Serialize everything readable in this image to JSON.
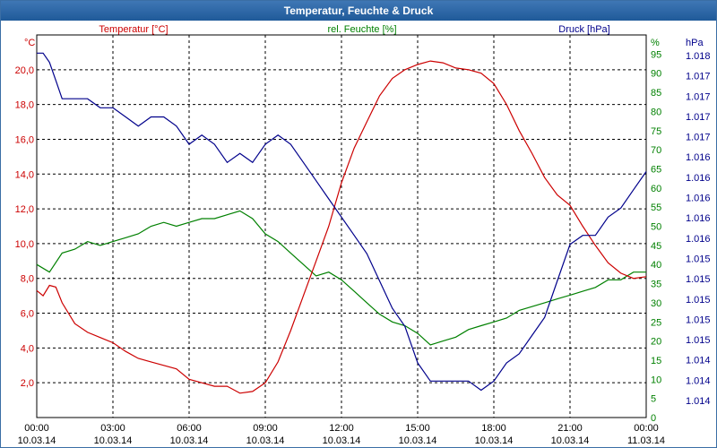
{
  "window": {
    "title": "Temperatur, Feuchte & Druck"
  },
  "chart_data": {
    "type": "line",
    "title": "Temperatur, Feuchte & Druck",
    "x_tick_labels": [
      {
        "time": "00:00",
        "date": "10.03.14"
      },
      {
        "time": "03:00",
        "date": "10.03.14"
      },
      {
        "time": "06:00",
        "date": "10.03.14"
      },
      {
        "time": "09:00",
        "date": "10.03.14"
      },
      {
        "time": "12:00",
        "date": "10.03.14"
      },
      {
        "time": "15:00",
        "date": "10.03.14"
      },
      {
        "time": "18:00",
        "date": "10.03.14"
      },
      {
        "time": "21:00",
        "date": "10.03.14"
      },
      {
        "time": "00:00",
        "date": "11.03.14"
      }
    ],
    "xlim": [
      0,
      24
    ],
    "series": [
      {
        "name": "Temperatur [°C]",
        "unit": "°C",
        "axis": "left",
        "color": "#cc0000",
        "ylim": [
          0,
          22
        ],
        "ticks": [
          2,
          4,
          6,
          8,
          10,
          12,
          14,
          16,
          18,
          20
        ],
        "tick_labels": [
          "2,0",
          "4,0",
          "6,0",
          "8,0",
          "10,0",
          "12,0",
          "14,0",
          "16,0",
          "18,0",
          "20,0"
        ],
        "x": [
          0,
          0.25,
          0.5,
          0.75,
          1,
          1.5,
          2,
          2.5,
          3,
          3.5,
          4,
          4.5,
          5,
          5.5,
          6,
          6.5,
          7,
          7.5,
          8,
          8.5,
          9,
          9.5,
          10,
          10.5,
          11,
          11.5,
          12,
          12.5,
          13,
          13.5,
          14,
          14.5,
          15,
          15.5,
          16,
          16.5,
          17,
          17.5,
          18,
          18.5,
          19,
          19.5,
          20,
          20.5,
          21,
          21.5,
          22,
          22.5,
          23,
          23.5,
          24
        ],
        "values": [
          7.3,
          7.0,
          7.6,
          7.5,
          6.6,
          5.4,
          4.9,
          4.6,
          4.3,
          3.8,
          3.4,
          3.2,
          3.0,
          2.8,
          2.2,
          2.0,
          1.8,
          1.8,
          1.4,
          1.5,
          2.0,
          3.2,
          5.0,
          7.0,
          9.0,
          11.0,
          13.5,
          15.5,
          17.0,
          18.5,
          19.5,
          20.0,
          20.3,
          20.5,
          20.4,
          20.1,
          20.0,
          19.8,
          19.2,
          18.0,
          16.5,
          15.2,
          13.8,
          12.8,
          12.2,
          11.0,
          9.9,
          8.9,
          8.3,
          8.0,
          8.1
        ]
      },
      {
        "name": "rel. Feuchte [%]",
        "unit": "%",
        "axis": "right",
        "color": "#008000",
        "ylim": [
          0,
          100
        ],
        "ticks": [
          0,
          5,
          10,
          15,
          20,
          25,
          30,
          35,
          40,
          45,
          50,
          55,
          60,
          65,
          70,
          75,
          80,
          85,
          90,
          95
        ],
        "tick_labels": [
          "0",
          "5",
          "10",
          "15",
          "20",
          "25",
          "30",
          "35",
          "40",
          "45",
          "50",
          "55",
          "60",
          "65",
          "70",
          "75",
          "80",
          "85",
          "90",
          "95"
        ],
        "x": [
          0,
          0.5,
          1,
          1.5,
          2,
          2.5,
          3,
          3.5,
          4,
          4.5,
          5,
          5.5,
          6,
          6.5,
          7,
          7.5,
          8,
          8.5,
          9,
          9.5,
          10,
          10.5,
          11,
          11.5,
          12,
          12.5,
          13,
          13.5,
          14,
          14.5,
          15,
          15.5,
          16,
          16.5,
          17,
          17.5,
          18,
          18.5,
          19,
          19.5,
          20,
          20.5,
          21,
          21.5,
          22,
          22.5,
          23,
          23.5,
          24
        ],
        "values": [
          40,
          38,
          43,
          44,
          46,
          45,
          46,
          47,
          48,
          50,
          51,
          50,
          51,
          52,
          52,
          53,
          54,
          52,
          48,
          46,
          43,
          40,
          37,
          38,
          36,
          33,
          30,
          27,
          25,
          24,
          22,
          19,
          20,
          21,
          23,
          24,
          25,
          26,
          28,
          29,
          30,
          31,
          32,
          33,
          34,
          36,
          36,
          38,
          38
        ]
      },
      {
        "name": "Druck [hPa]",
        "unit": "hPa",
        "axis": "right-outer",
        "color": "#00008b",
        "ylim": [
          1013.8,
          1018.0
        ],
        "tick_labels": [
          "1.014",
          "1.014",
          "1.014",
          "1.015",
          "1.015",
          "1.015",
          "1.015",
          "1.015",
          "1.016",
          "1.016",
          "1.016",
          "1.016",
          "1.016",
          "1.017",
          "1.017",
          "1.017",
          "1.017",
          "1.018"
        ],
        "x": [
          0,
          0.25,
          0.5,
          0.75,
          1,
          1.5,
          2,
          2.5,
          3,
          3.5,
          4,
          4.5,
          5,
          5.5,
          6,
          6.5,
          7,
          7.5,
          8,
          8.5,
          9,
          9.5,
          10,
          10.5,
          11,
          11.5,
          12,
          12.5,
          13,
          13.5,
          14,
          14.5,
          15,
          15.5,
          16,
          16.5,
          17,
          17.5,
          18,
          18.5,
          19,
          19.5,
          20,
          20.5,
          21,
          21.5,
          22,
          22.5,
          23,
          23.5,
          24
        ],
        "values": [
          1017.8,
          1017.8,
          1017.7,
          1017.5,
          1017.3,
          1017.3,
          1017.3,
          1017.2,
          1017.2,
          1017.1,
          1017.0,
          1017.1,
          1017.1,
          1017.0,
          1016.8,
          1016.9,
          1016.8,
          1016.6,
          1016.7,
          1016.6,
          1016.8,
          1016.9,
          1016.8,
          1016.6,
          1016.4,
          1016.2,
          1016.0,
          1015.8,
          1015.6,
          1015.3,
          1015.0,
          1014.8,
          1014.4,
          1014.2,
          1014.2,
          1014.2,
          1014.2,
          1014.1,
          1014.2,
          1014.4,
          1014.5,
          1014.7,
          1014.9,
          1015.3,
          1015.7,
          1015.8,
          1015.8,
          1016.0,
          1016.1,
          1016.3,
          1016.5
        ]
      }
    ],
    "grid": true,
    "legend": "top"
  }
}
